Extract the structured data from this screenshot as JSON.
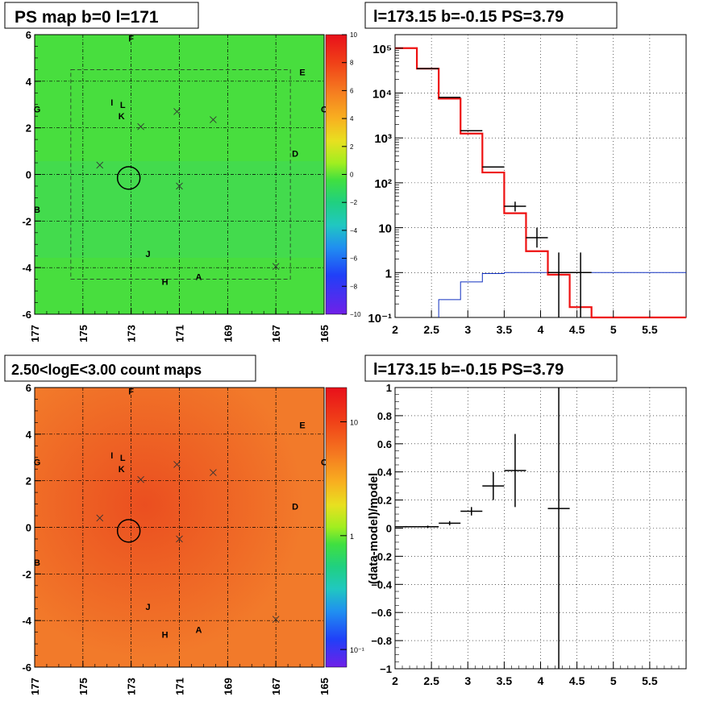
{
  "panels": {
    "tl_title": "PS map b=0 l=171",
    "tr_title": "l=173.15 b=-0.15 PS=3.79",
    "bl_title": "2.50<logE<3.00 count maps",
    "br_title": "l=173.15 b=-0.15 PS=3.79"
  },
  "colors": {
    "map_green": "#46e040",
    "map_orange": "#f27a2a",
    "data_line": "#000000",
    "model_line": "#ee1111",
    "background_line": "#1030c0"
  },
  "chart_data": [
    {
      "type": "heatmap",
      "title": "PS map b=0 l=171",
      "x_ticks": [
        "177",
        "175",
        "173",
        "171",
        "169",
        "167",
        "165"
      ],
      "y_ticks": [
        "6",
        "4",
        "2",
        "0",
        "-2",
        "-4",
        "-6"
      ],
      "xlim": [
        177,
        165
      ],
      "ylim": [
        -6,
        6
      ],
      "grid": true,
      "colorbar": {
        "range": [
          -10,
          10
        ],
        "ticks": [
          "10",
          "8",
          "6",
          "4",
          "2",
          "0",
          "−2",
          "−4",
          "−6",
          "−8",
          "−10"
        ]
      },
      "annotations": [
        {
          "label": "F",
          "l": 173.0,
          "b": 5.85
        },
        {
          "label": "E",
          "l": 165.9,
          "b": 4.4
        },
        {
          "label": "G",
          "l": 176.9,
          "b": 2.8
        },
        {
          "label": "C",
          "l": 165.0,
          "b": 2.8
        },
        {
          "label": "I",
          "l": 173.8,
          "b": 3.1
        },
        {
          "label": "L",
          "l": 173.35,
          "b": 3.0
        },
        {
          "label": "K",
          "l": 173.4,
          "b": 2.5
        },
        {
          "label": "D",
          "l": 166.2,
          "b": 0.9
        },
        {
          "label": "B",
          "l": 176.9,
          "b": -1.5
        },
        {
          "label": "J",
          "l": 172.3,
          "b": -3.4
        },
        {
          "label": "A",
          "l": 170.2,
          "b": -4.4
        },
        {
          "label": "H",
          "l": 171.6,
          "b": -4.6
        }
      ],
      "markers": [
        {
          "l": 172.6,
          "b": 2.05
        },
        {
          "l": 171.1,
          "b": 2.7
        },
        {
          "l": 169.6,
          "b": 2.35
        },
        {
          "l": 174.3,
          "b": 0.4
        },
        {
          "l": 171.0,
          "b": -0.5
        },
        {
          "l": 167.0,
          "b": -3.95
        }
      ],
      "circle": {
        "l": 173.1,
        "b": -0.15
      }
    },
    {
      "type": "line",
      "title": "l=173.15 b=-0.15 PS=3.79",
      "y_scale": "log",
      "xlim": [
        2,
        6
      ],
      "ylim": [
        0.1,
        200000
      ],
      "x_ticks": [
        "2",
        "2.5",
        "3",
        "3.5",
        "4",
        "4.5",
        "5",
        "5.5"
      ],
      "y_ticks": [
        "10⁵",
        "10⁴",
        "10³",
        "10²",
        "10",
        "1",
        "10⁻¹"
      ],
      "grid": true,
      "series": [
        {
          "role": "data",
          "points": [
            {
              "x": 2.45,
              "y": 35000,
              "xerr": 0.15
            },
            {
              "x": 2.75,
              "y": 8000,
              "xerr": 0.15
            },
            {
              "x": 3.05,
              "y": 1450,
              "xerr": 0.15
            },
            {
              "x": 3.35,
              "y": 225,
              "xerr": 0.15
            },
            {
              "x": 3.65,
              "y": 30,
              "xerr": 0.15,
              "ylo": 23,
              "yhi": 38
            },
            {
              "x": 3.95,
              "y": 6,
              "xerr": 0.15,
              "ylo": 3.6,
              "yhi": 10
            },
            {
              "x": 4.25,
              "y": 1,
              "xerr": 0.15,
              "ylo": 0.1,
              "yhi": 2.8
            },
            {
              "x": 4.55,
              "y": 1,
              "xerr": 0.15,
              "ylo": 0.1,
              "yhi": 2.8
            }
          ]
        },
        {
          "role": "model",
          "edges": [
            2,
            2.3,
            2.6,
            2.9,
            3.2,
            3.5,
            3.8,
            4.1,
            4.4,
            4.7,
            5.0,
            6.0
          ],
          "values": [
            100000,
            35000,
            7500,
            1250,
            170,
            21,
            3,
            0.9,
            0.17,
            0.1,
            0.1
          ]
        },
        {
          "role": "background",
          "edges": [
            2.6,
            2.9,
            3.2,
            3.5,
            6.0
          ],
          "values": [
            0.25,
            0.62,
            0.95,
            1.0
          ]
        }
      ]
    },
    {
      "type": "heatmap",
      "title": "2.50<logE<3.00 count maps",
      "x_ticks": [
        "177",
        "175",
        "173",
        "171",
        "169",
        "167",
        "165"
      ],
      "y_ticks": [
        "6",
        "4",
        "2",
        "0",
        "-2",
        "-4",
        "-6"
      ],
      "xlim": [
        177,
        165
      ],
      "ylim": [
        -6,
        6
      ],
      "grid": true,
      "colorbar": {
        "scale": "log",
        "range": [
          0.07,
          20
        ],
        "ticks": [
          {
            "value": 10,
            "label": "10"
          },
          {
            "value": 1,
            "label": "1"
          },
          {
            "value": 0.1,
            "label": "10⁻¹"
          }
        ]
      }
    },
    {
      "type": "scatter",
      "title": "l=173.15 b=-0.15 PS=3.79",
      "ylabel": "(data-model)/model",
      "xlim": [
        2,
        6
      ],
      "ylim": [
        -1,
        1
      ],
      "x_ticks": [
        "2",
        "2.5",
        "3",
        "3.5",
        "4",
        "4.5",
        "5",
        "5.5"
      ],
      "y_ticks": [
        "1",
        "0.8",
        "0.6",
        "0.4",
        "0.2",
        "0",
        "−0.2",
        "−0.4",
        "−0.6",
        "−0.8",
        "−1"
      ],
      "grid": true,
      "points": [
        {
          "x": 2.15,
          "y": 0.01,
          "xerr": 0.15,
          "yerr": 0.005
        },
        {
          "x": 2.45,
          "y": 0.01,
          "xerr": 0.15,
          "yerr": 0.008
        },
        {
          "x": 2.75,
          "y": 0.035,
          "xerr": 0.15,
          "yerr": 0.015
        },
        {
          "x": 3.05,
          "y": 0.12,
          "xerr": 0.15,
          "yerr": 0.03
        },
        {
          "x": 3.35,
          "y": 0.3,
          "xerr": 0.15,
          "yerr": 0.1
        },
        {
          "x": 3.65,
          "y": 0.41,
          "xerr": 0.15,
          "yerr": 0.26
        },
        {
          "x": 4.25,
          "y": 0.14,
          "xerr": 0.15,
          "yerr": 1.2
        }
      ]
    }
  ]
}
